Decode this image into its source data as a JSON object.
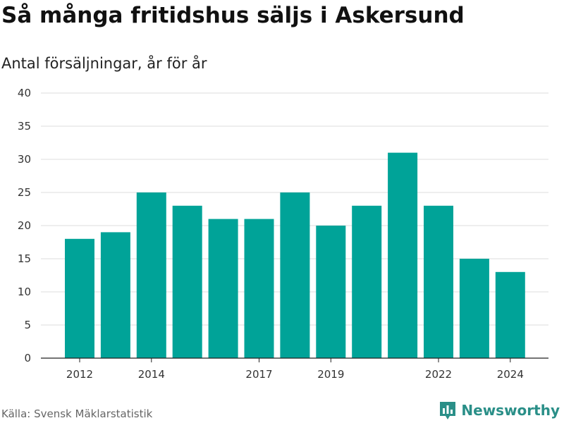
{
  "title": "Så många fritidshus säljs i Askersund",
  "subtitle": "Antal försäljningar, år för år",
  "source": "Källa: Svensk Mäklarstatistik",
  "brand": {
    "name": "Newsworthy",
    "icon": "bar-chart-logo-icon",
    "color": "#2a8f88"
  },
  "chart_data": {
    "type": "bar",
    "title": "Så många fritidshus säljs i Askersund",
    "ylabel": "Antal försäljningar, år för år",
    "xlabel": "",
    "categories": [
      2012,
      2013,
      2014,
      2015,
      2016,
      2017,
      2018,
      2019,
      2020,
      2021,
      2022,
      2023,
      2024
    ],
    "values": [
      18,
      19,
      25,
      23,
      21,
      21,
      25,
      20,
      23,
      31,
      23,
      15,
      13
    ],
    "x_tick_labels": [
      "2012",
      "2014",
      "2017",
      "2019",
      "2022",
      "2024"
    ],
    "y_ticks": [
      0,
      5,
      10,
      15,
      20,
      25,
      30,
      35,
      40
    ],
    "ylim": [
      0,
      40
    ],
    "grid": true,
    "legend": "none",
    "bar_color": "#00a398"
  }
}
